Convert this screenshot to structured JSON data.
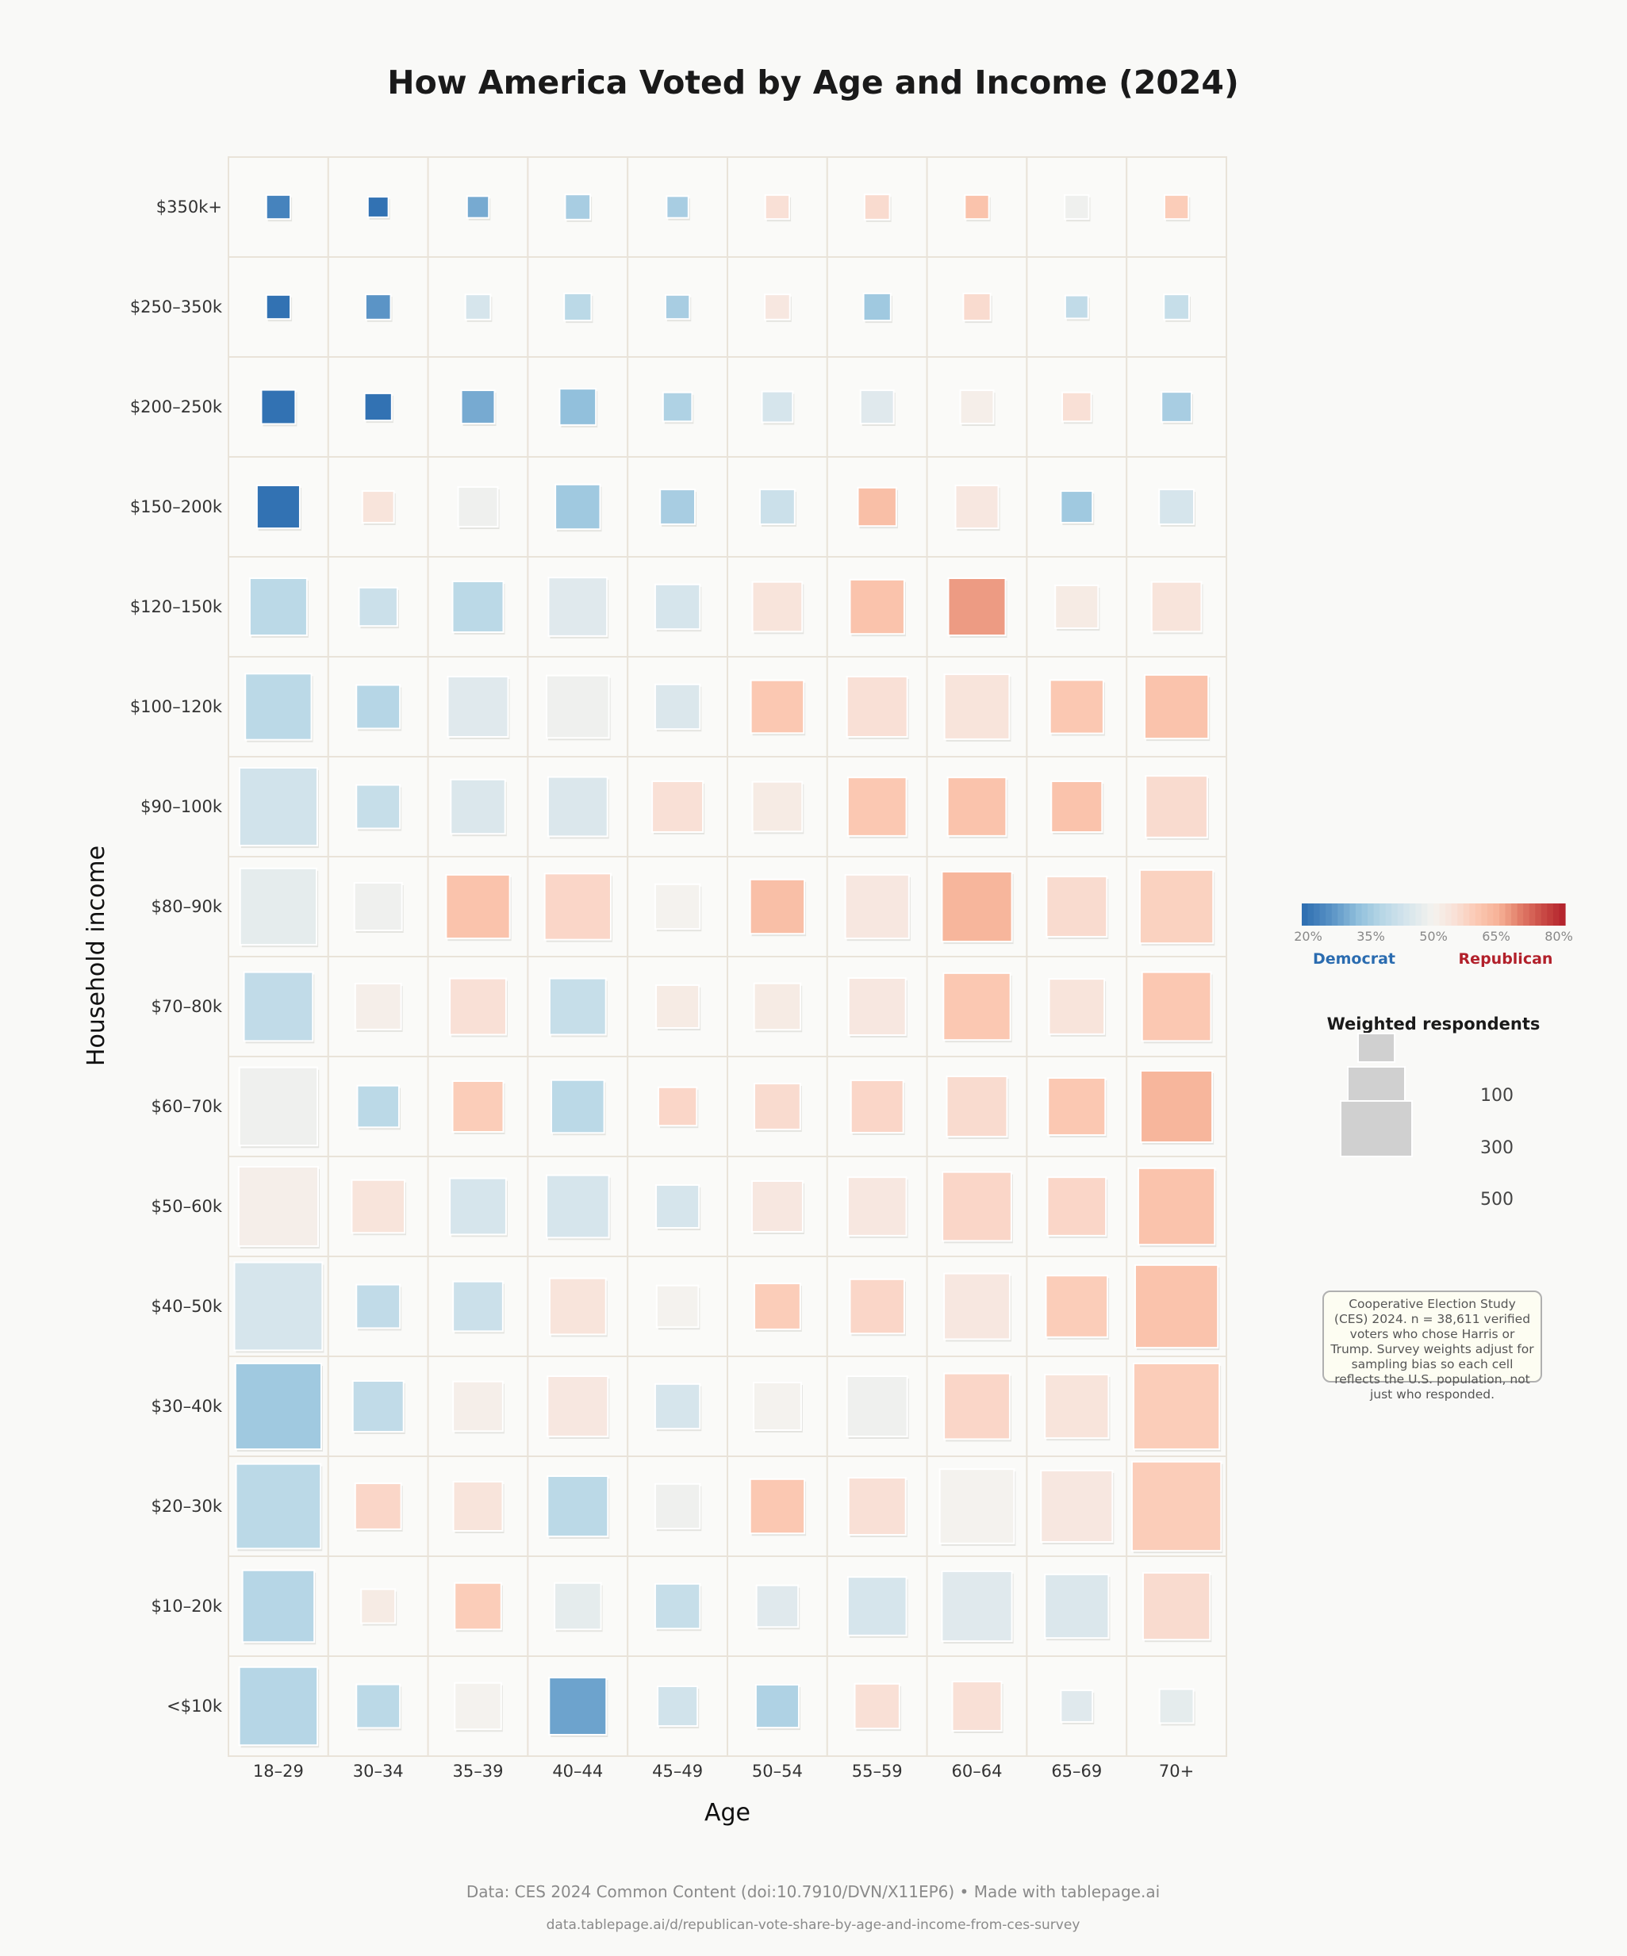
{
  "title": "How America Voted by Age and Income (2024)",
  "footer": {
    "source": "Data: CES 2024 Common Content (doi:10.7910/DVN/X11EP6)  •  Made with tablepage.ai",
    "url": "data.tablepage.ai/d/republican-vote-share-by-age-and-income-from-ces-survey"
  },
  "note": "Cooperative Election Study (CES) 2024. n = 38,611 verified voters who chose Harris or Trump. Survey weights adjust for sampling bias so each cell reflects the U.S. population, not just who responded.",
  "chart_data": {
    "type": "heatmap",
    "title": "How America Voted by Age and Income (2024)",
    "xlabel": "Age",
    "ylabel": "Household income",
    "x_categories": [
      "18–29",
      "30–34",
      "35–39",
      "40–44",
      "45–49",
      "50–54",
      "55–59",
      "60–64",
      "65–69",
      "70+"
    ],
    "y_categories": [
      "$350k+",
      "$250–350k",
      "$200–250k",
      "$150–200k",
      "$120–150k",
      "$100–120k",
      "$90–100k",
      "$80–90k",
      "$70–80k",
      "$60–70k",
      "$50–60k",
      "$40–50k",
      "$30–40k",
      "$20–30k",
      "$10–20k",
      "<$10k"
    ],
    "color_metric": "Republican two-party vote share (%)",
    "color_scale": {
      "range": [
        20,
        80
      ],
      "tick_labels": [
        "20%",
        "35%",
        "50%",
        "65%",
        "80%"
      ],
      "low_label": "Democrat",
      "high_label": "Republican",
      "low_color": "#2b6cb0",
      "mid_color": "#f4f2ee",
      "high_color": "#b2202a"
    },
    "size_legend": {
      "title": "Weighted respondents",
      "values": [
        "100",
        "300",
        "500"
      ]
    },
    "republican_share": [
      [
        24,
        21,
        30,
        36,
        36,
        55,
        56,
        61,
        49,
        59
      ],
      [
        21,
        27,
        44,
        39,
        36,
        53,
        35,
        56,
        40,
        41
      ],
      [
        21,
        21,
        30,
        33,
        37,
        44,
        46,
        51,
        55,
        36
      ],
      [
        21,
        54,
        49,
        35,
        36,
        42,
        62,
        53,
        35,
        44
      ],
      [
        39,
        42,
        39,
        46,
        44,
        54,
        61,
        67,
        52,
        54
      ],
      [
        39,
        38,
        46,
        49,
        45,
        60,
        55,
        54,
        60,
        61
      ],
      [
        43,
        41,
        45,
        45,
        55,
        52,
        60,
        61,
        61,
        56
      ],
      [
        47,
        49,
        61,
        57,
        50,
        62,
        53,
        64,
        56,
        58
      ],
      [
        40,
        51,
        55,
        41,
        52,
        52,
        53,
        60,
        54,
        60
      ],
      [
        49,
        39,
        59,
        39,
        57,
        56,
        57,
        56,
        60,
        64
      ],
      [
        51,
        54,
        44,
        44,
        44,
        53,
        53,
        57,
        57,
        61
      ],
      [
        44,
        40,
        42,
        54,
        50,
        59,
        57,
        53,
        59,
        61
      ],
      [
        35,
        40,
        51,
        53,
        44,
        50,
        49,
        57,
        54,
        59
      ],
      [
        39,
        57,
        54,
        39,
        49,
        60,
        55,
        50,
        53,
        59
      ],
      [
        38,
        52,
        59,
        47,
        41,
        46,
        44,
        46,
        45,
        56
      ],
      [
        38,
        39,
        50,
        29,
        43,
        37,
        55,
        55,
        46,
        47
      ]
    ],
    "weighted_respondents": [
      [
        55,
        40,
        45,
        60,
        45,
        55,
        60,
        55,
        55,
        55
      ],
      [
        55,
        60,
        60,
        70,
        55,
        60,
        70,
        70,
        50,
        60
      ],
      [
        110,
        70,
        105,
        125,
        80,
        90,
        105,
        105,
        80,
        85
      ],
      [
        175,
        95,
        150,
        190,
        115,
        115,
        140,
        175,
        95,
        115
      ],
      [
        310,
        140,
        245,
        325,
        190,
        235,
        280,
        310,
        175,
        235
      ],
      [
        415,
        180,
        345,
        370,
        190,
        265,
        345,
        400,
        270,
        385
      ],
      [
        575,
        180,
        280,
        335,
        245,
        235,
        325,
        325,
        245,
        360
      ],
      [
        555,
        215,
        385,
        415,
        190,
        280,
        385,
        465,
        345,
        510
      ],
      [
        450,
        200,
        300,
        300,
        175,
        205,
        310,
        425,
        290,
        450
      ],
      [
        580,
        165,
        245,
        265,
        140,
        200,
        260,
        345,
        310,
        485
      ],
      [
        600,
        265,
        300,
        370,
        175,
        245,
        325,
        450,
        325,
        555
      ],
      [
        735,
        180,
        235,
        300,
        165,
        200,
        280,
        410,
        360,
        650
      ],
      [
        700,
        245,
        235,
        345,
        190,
        215,
        345,
        410,
        385,
        700
      ],
      [
        680,
        200,
        230,
        345,
        190,
        280,
        310,
        525,
        485,
        755
      ],
      [
        490,
        110,
        205,
        205,
        190,
        165,
        325,
        465,
        385,
        425
      ],
      [
        580,
        180,
        205,
        310,
        150,
        175,
        190,
        230,
        95,
        110
      ]
    ]
  }
}
